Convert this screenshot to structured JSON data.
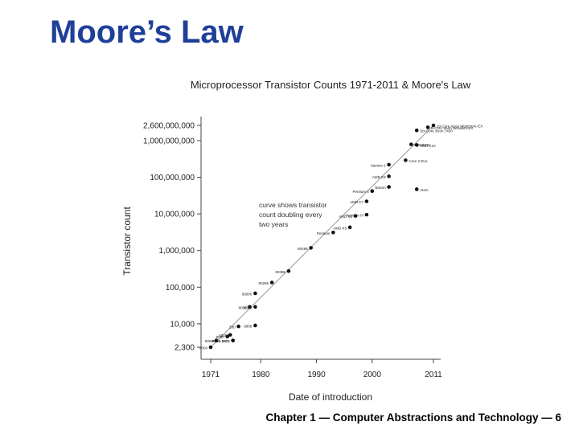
{
  "slide": {
    "title": "Moore’s Law",
    "footer": "Chapter 1 — Computer Abstractions and Technology — 6"
  },
  "chart_data": {
    "type": "scatter",
    "title": "Microprocessor Transistor Counts 1971-2011 & Moore's Law",
    "xlabel": "Date of introduction",
    "ylabel": "Transistor count",
    "y_scale": "log",
    "xlim": [
      1971,
      2011
    ],
    "ylim": [
      2300,
      2600000000
    ],
    "x_ticks": [
      {
        "value": 1971,
        "label": "1971"
      },
      {
        "value": 1980,
        "label": "1980"
      },
      {
        "value": 1990,
        "label": "1990"
      },
      {
        "value": 2000,
        "label": "2000"
      },
      {
        "value": 2011,
        "label": "2011"
      }
    ],
    "y_ticks": [
      {
        "value": 2300,
        "label": "2,300"
      },
      {
        "value": 10000,
        "label": "10,000"
      },
      {
        "value": 100000,
        "label": "100,000"
      },
      {
        "value": 1000000,
        "label": "1,000,000"
      },
      {
        "value": 10000000,
        "label": "10,000,000"
      },
      {
        "value": 100000000,
        "label": "100,000,000"
      },
      {
        "value": 1000000000,
        "label": "1,000,000,000"
      },
      {
        "value": 2600000000,
        "label": "2,600,000,000"
      }
    ],
    "trend_line": {
      "x": [
        1971,
        2011
      ],
      "y": [
        2300,
        2600000000
      ]
    },
    "annotation": [
      "curve shows transistor",
      "count doubling every",
      "two years"
    ],
    "points": [
      {
        "x": 1971,
        "y": 2300,
        "label": "4004"
      },
      {
        "x": 1972,
        "y": 3500,
        "label": "8008"
      },
      {
        "x": 1974,
        "y": 4500,
        "label": "8080"
      },
      {
        "x": 1974.5,
        "y": 5000,
        "label": "6800"
      },
      {
        "x": 1975,
        "y": 3510,
        "label": "RCA 1802"
      },
      {
        "x": 1975,
        "y": 3510,
        "label": "MOS 6502"
      },
      {
        "x": 1976,
        "y": 8500,
        "label": "Z80"
      },
      {
        "x": 1978,
        "y": 29000,
        "label": "8086"
      },
      {
        "x": 1979,
        "y": 29000,
        "label": "8088"
      },
      {
        "x": 1979,
        "y": 9000,
        "label": "6809"
      },
      {
        "x": 1979,
        "y": 68000,
        "label": "68000"
      },
      {
        "x": 1982,
        "y": 134000,
        "label": "80286"
      },
      {
        "x": 1985,
        "y": 275000,
        "label": "80386"
      },
      {
        "x": 1989,
        "y": 1180000,
        "label": "80486"
      },
      {
        "x": 1993,
        "y": 3100000,
        "label": "Pentium"
      },
      {
        "x": 1996,
        "y": 4300000,
        "label": "AMD K5"
      },
      {
        "x": 1997,
        "y": 8800000,
        "label": "AMD K6"
      },
      {
        "x": 1999,
        "y": 9500000,
        "label": "Pentium III"
      },
      {
        "x": 1999,
        "y": 22000000,
        "label": "AMD K7"
      },
      {
        "x": 2000,
        "y": 42000000,
        "label": "Pentium 4"
      },
      {
        "x": 2003,
        "y": 105900000,
        "label": "AMD K8"
      },
      {
        "x": 2003,
        "y": 54300000,
        "label": "Barton"
      },
      {
        "x": 2003,
        "y": 220000000,
        "label": "Itanium 2"
      },
      {
        "x": 2006,
        "y": 291000000,
        "label": "Core 2 Duo"
      },
      {
        "x": 2008,
        "y": 47000000,
        "label": "Atom"
      },
      {
        "x": 2008,
        "y": 758000000,
        "label": "AMD K10"
      },
      {
        "x": 2007,
        "y": 789000000,
        "label": "POWER6"
      },
      {
        "x": 2008,
        "y": 1900000000,
        "label": "Six-Core Xeon 7400"
      },
      {
        "x": 2010,
        "y": 2300000000,
        "label": "8-Core Xeon Nehalem-EX"
      },
      {
        "x": 2011,
        "y": 2600000000,
        "label": "10-Core Xeon Westmere-EX"
      }
    ]
  }
}
